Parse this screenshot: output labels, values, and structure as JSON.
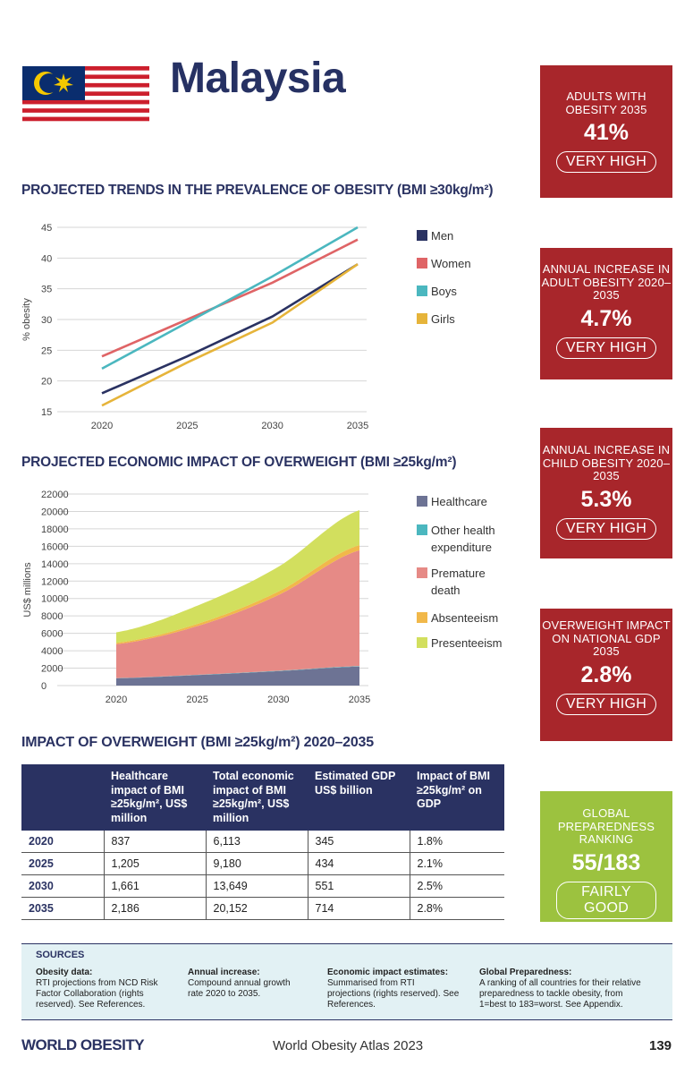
{
  "page": {
    "country": "Malaysia",
    "footer_logo": "WORLD OBESITY",
    "footer_title": "World Obesity Atlas 2023",
    "page_number": "139"
  },
  "flag": {
    "name": "Malaysia flag",
    "stripe_red": "#cc1f2d",
    "canton_blue": "#0a2d6e",
    "emblem_yellow": "#f5c800"
  },
  "section1": {
    "title": "PROJECTED TRENDS IN THE PREVALENCE OF OBESITY (BMI ≥30kg/m²)"
  },
  "section2": {
    "title": "PROJECTED ECONOMIC IMPACT OF OVERWEIGHT (BMI ≥25kg/m²)"
  },
  "section3": {
    "title": "IMPACT OF OVERWEIGHT (BMI ≥25kg/m²) 2020–2035"
  },
  "kpis": [
    {
      "title": "ADULTS WITH OBESITY 2035",
      "value": "41%",
      "rating": "VERY HIGH",
      "color": "#a8262b"
    },
    {
      "title": "ANNUAL INCREASE IN ADULT OBESITY 2020–2035",
      "value": "4.7%",
      "rating": "VERY HIGH",
      "color": "#a8262b"
    },
    {
      "title": "ANNUAL INCREASE IN CHILD OBESITY 2020–2035",
      "value": "5.3%",
      "rating": "VERY HIGH",
      "color": "#a8262b"
    },
    {
      "title": "OVERWEIGHT IMPACT ON NATIONAL GDP 2035",
      "value": "2.8%",
      "rating": "VERY HIGH",
      "color": "#a8262b"
    },
    {
      "title": "GLOBAL PREPAREDNESS RANKING",
      "value": "55/183",
      "rating": "FAIRLY GOOD",
      "color": "#9cc23f"
    }
  ],
  "chart_data": [
    {
      "type": "line",
      "ylabel": "% obesity",
      "xlabel": "",
      "x": [
        2020,
        2025,
        2030,
        2035
      ],
      "yticks": [
        15,
        20,
        25,
        30,
        35,
        40,
        45
      ],
      "ylim": [
        15,
        45
      ],
      "grid": true,
      "legend": "right",
      "series": [
        {
          "name": "Men",
          "color": "#2a3262",
          "values": [
            18,
            24,
            30.5,
            39
          ]
        },
        {
          "name": "Women",
          "color": "#df6466",
          "values": [
            24,
            30,
            36,
            43
          ]
        },
        {
          "name": "Boys",
          "color": "#4bb7bf",
          "values": [
            22,
            29.5,
            37,
            45
          ]
        },
        {
          "name": "Girls",
          "color": "#e6b43a",
          "values": [
            16,
            23,
            29.5,
            39
          ]
        }
      ]
    },
    {
      "type": "area",
      "ylabel": "US$ millions",
      "xlabel": "",
      "x": [
        2020,
        2025,
        2030,
        2035
      ],
      "yticks": [
        0,
        2000,
        4000,
        6000,
        8000,
        10000,
        12000,
        14000,
        16000,
        18000,
        20000,
        22000
      ],
      "ylim": [
        0,
        22000
      ],
      "grid": true,
      "legend": "right",
      "stacked": true,
      "series": [
        {
          "name": "Healthcare",
          "color": "#6d7394",
          "values": [
            837,
            1205,
            1661,
            2186
          ]
        },
        {
          "name": "Other health expenditure",
          "color": "#4bb7bf",
          "values": [
            20,
            30,
            40,
            50
          ]
        },
        {
          "name": "Premature death",
          "color": "#e68a86",
          "values": [
            3900,
            5600,
            8700,
            13300
          ]
        },
        {
          "name": "Absenteeism",
          "color": "#f1b84a",
          "values": [
            150,
            250,
            400,
            600
          ]
        },
        {
          "name": "Presenteeism",
          "color": "#d2df5e",
          "values": [
            1206,
            2095,
            2848,
            4016
          ]
        }
      ]
    }
  ],
  "table": {
    "headers": [
      "",
      "Healthcare impact of BMI ≥25kg/m², US$ million",
      "Total economic impact of BMI ≥25kg/m², US$ million",
      "Estimated GDP US$ billion",
      "Impact of BMI ≥25kg/m² on GDP"
    ],
    "rows": [
      [
        "2020",
        "837",
        "6,113",
        "345",
        "1.8%"
      ],
      [
        "2025",
        "1,205",
        "9,180",
        "434",
        "2.1%"
      ],
      [
        "2030",
        "1,661",
        "13,649",
        "551",
        "2.5%"
      ],
      [
        "2035",
        "2,186",
        "20,152",
        "714",
        "2.8%"
      ]
    ]
  },
  "sources": {
    "heading": "SOURCES",
    "columns": [
      {
        "title": "Obesity data:",
        "text": "RTI projections from NCD Risk Factor Collaboration (rights reserved). See References."
      },
      {
        "title": "Annual increase:",
        "text": "Compound annual growth rate 2020 to 2035."
      },
      {
        "title": "Economic impact estimates:",
        "text": "Summarised from RTI projections (rights reserved). See References."
      },
      {
        "title": "Global Preparedness:",
        "text": "A ranking of all countries for their relative preparedness to tackle obesity, from 1=best to 183=worst. See Appendix."
      }
    ]
  }
}
